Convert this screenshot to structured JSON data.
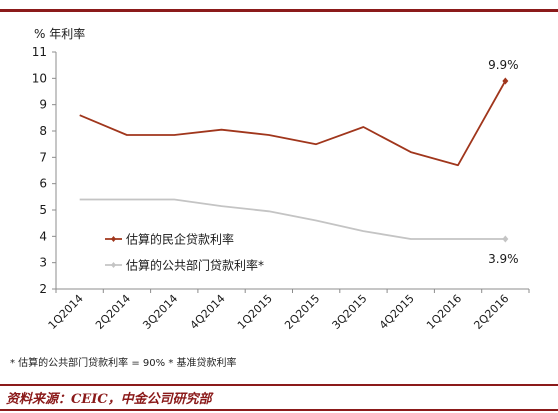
{
  "chart_data": {
    "type": "line",
    "unit_label": "% 年利率",
    "categories": [
      "1Q2014",
      "2Q2014",
      "3Q2014",
      "4Q2014",
      "1Q2015",
      "2Q2015",
      "3Q2015",
      "4Q2015",
      "1Q2016",
      "2Q2016"
    ],
    "ylim": [
      2,
      11
    ],
    "yticks": [
      2,
      3,
      4,
      5,
      6,
      7,
      8,
      9,
      10,
      11
    ],
    "grid": false,
    "legend_position": "lower-left",
    "series": [
      {
        "name": "估算的民企贷款利率",
        "color": "#a0361c",
        "values": [
          8.6,
          7.85,
          7.85,
          8.05,
          7.85,
          7.5,
          8.15,
          7.2,
          6.7,
          9.9
        ],
        "end_label": "9.9%"
      },
      {
        "name": "估算的公共部门贷款利率*",
        "color": "#c4c4c4",
        "values": [
          5.4,
          5.4,
          5.4,
          5.15,
          4.95,
          4.6,
          4.2,
          3.9,
          3.9,
          3.9
        ],
        "end_label": "3.9%"
      }
    ]
  },
  "footnote": "* 估算的公共部门贷款利率 = 90% * 基准贷款利率",
  "source": "资料来源：CEIC，中金公司研究部",
  "colors": {
    "brand": "#8b1a1a"
  }
}
